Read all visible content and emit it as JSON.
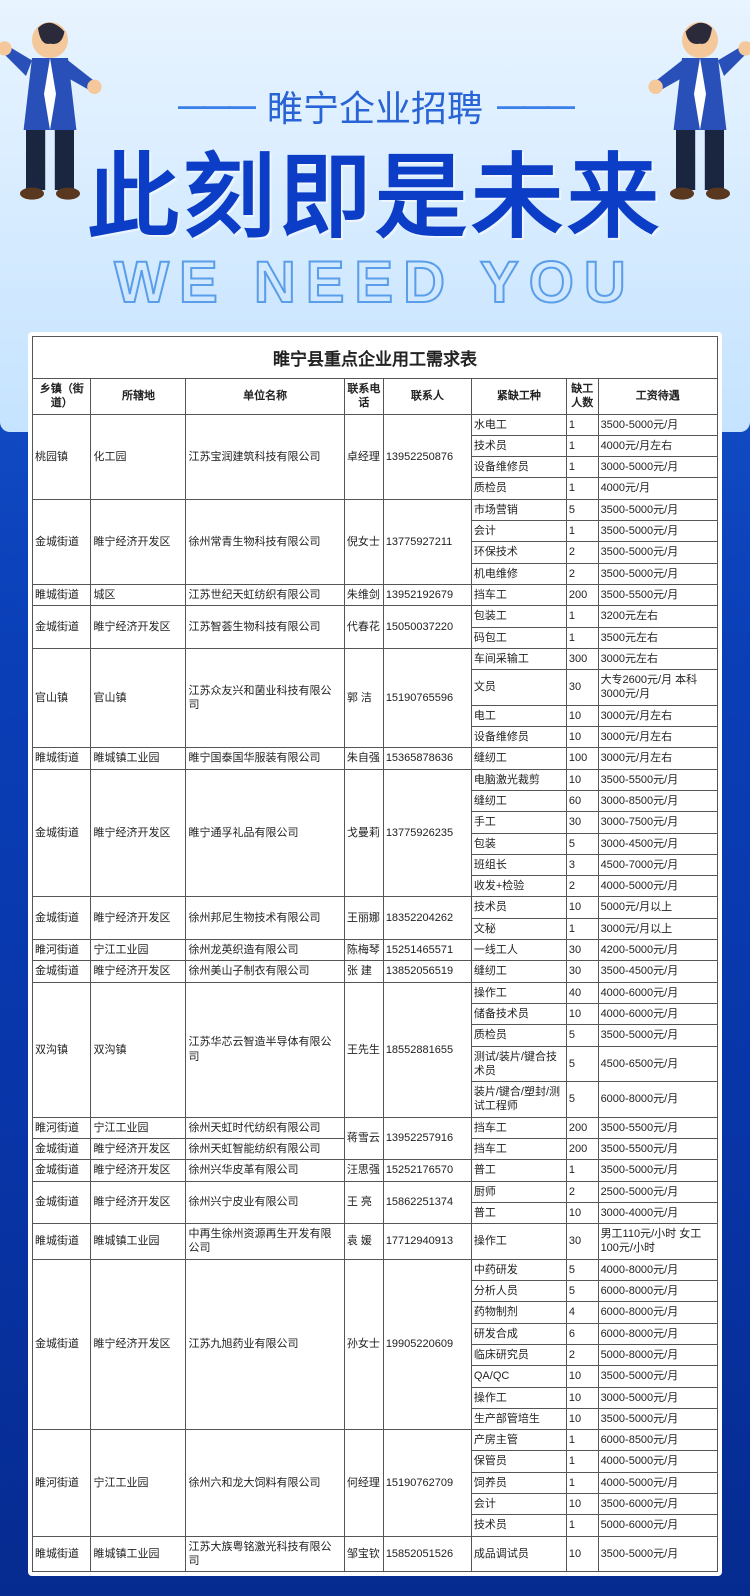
{
  "hero": {
    "subtitle": "睢宁企业招聘",
    "headline": "此刻即是未来",
    "english": "WE NEED YOU"
  },
  "table": {
    "title": "睢宁县重点企业用工需求表",
    "headers": [
      "乡镇（街道）",
      "所辖地",
      "单位名称",
      "联系电话",
      "联系人",
      "紧缺工种",
      "缺工人数",
      "工资待遇"
    ],
    "groups": [
      {
        "town": "桃园镇",
        "loc": "化工园",
        "comp": "江苏宝润建筑科技有限公司",
        "contact": "卓经理",
        "tel": "13952250876",
        "jobs": [
          {
            "name": "水电工",
            "num": "1",
            "sal": "3500-5000元/月"
          },
          {
            "name": "技术员",
            "num": "1",
            "sal": "4000元/月左右"
          },
          {
            "name": "设备维修员",
            "num": "1",
            "sal": "3000-5000元/月"
          },
          {
            "name": "质检员",
            "num": "1",
            "sal": "4000元/月"
          }
        ]
      },
      {
        "town": "金城街道",
        "loc": "睢宁经济开发区",
        "comp": "徐州常青生物科技有限公司",
        "contact": "倪女士",
        "tel": "13775927211",
        "jobs": [
          {
            "name": "市场营销",
            "num": "5",
            "sal": "3500-5000元/月"
          },
          {
            "name": "会计",
            "num": "1",
            "sal": "3500-5000元/月"
          },
          {
            "name": "环保技术",
            "num": "2",
            "sal": "3500-5000元/月"
          },
          {
            "name": "机电维修",
            "num": "2",
            "sal": "3500-5000元/月"
          }
        ]
      },
      {
        "town": "睢城街道",
        "loc": "城区",
        "comp": "江苏世纪天虹纺织有限公司",
        "contact": "朱维剑",
        "tel": "13952192679",
        "jobs": [
          {
            "name": "挡车工",
            "num": "200",
            "sal": "3500-5500元/月"
          }
        ]
      },
      {
        "town": "金城街道",
        "loc": "睢宁经济开发区",
        "comp": "江苏智荟生物科技有限公司",
        "contact": "代春花",
        "tel": "15050037220",
        "jobs": [
          {
            "name": "包装工",
            "num": "1",
            "sal": "3200元左右"
          },
          {
            "name": "码包工",
            "num": "1",
            "sal": "3500元左右"
          }
        ]
      },
      {
        "town": "官山镇",
        "loc": "官山镇",
        "comp": "江苏众友兴和菌业科技有限公司",
        "contact": "郭 洁",
        "tel": "15190765596",
        "jobs": [
          {
            "name": "车间采输工",
            "num": "300",
            "sal": "3000元左右"
          },
          {
            "name": "文员",
            "num": "30",
            "sal": "大专2600元/月 本科3000元/月"
          },
          {
            "name": "电工",
            "num": "10",
            "sal": "3000元/月左右"
          },
          {
            "name": "设备维修员",
            "num": "10",
            "sal": "3000元/月左右"
          }
        ]
      },
      {
        "town": "睢城街道",
        "loc": "睢城镇工业园",
        "comp": "睢宁国泰国华服装有限公司",
        "contact": "朱自强",
        "tel": "15365878636",
        "jobs": [
          {
            "name": "缝纫工",
            "num": "100",
            "sal": "3000元/月左右"
          }
        ]
      },
      {
        "town": "金城街道",
        "loc": "睢宁经济开发区",
        "comp": "睢宁通孚礼品有限公司",
        "contact": "戈曼莉",
        "tel": "13775926235",
        "jobs": [
          {
            "name": "电脑激光裁剪",
            "num": "10",
            "sal": "3500-5500元/月"
          },
          {
            "name": "缝纫工",
            "num": "60",
            "sal": "3000-8500元/月"
          },
          {
            "name": "手工",
            "num": "30",
            "sal": "3000-7500元/月"
          },
          {
            "name": "包装",
            "num": "5",
            "sal": "3000-4500元/月"
          },
          {
            "name": "班组长",
            "num": "3",
            "sal": "4500-7000元/月"
          },
          {
            "name": "收发+检验",
            "num": "2",
            "sal": "4000-5000元/月"
          }
        ]
      },
      {
        "town": "金城街道",
        "loc": "睢宁经济开发区",
        "comp": "徐州邦尼生物技术有限公司",
        "contact": "王丽娜",
        "tel": "18352204262",
        "jobs": [
          {
            "name": "技术员",
            "num": "10",
            "sal": "5000元/月以上"
          },
          {
            "name": "文秘",
            "num": "1",
            "sal": "3000元/月以上"
          }
        ]
      },
      {
        "town": "睢河街道",
        "loc": "宁江工业园",
        "comp": "徐州龙英织造有限公司",
        "contact": "陈梅琴",
        "tel": "15251465571",
        "jobs": [
          {
            "name": "一线工人",
            "num": "30",
            "sal": "4200-5000元/月"
          }
        ]
      },
      {
        "town": "金城街道",
        "loc": "睢宁经济开发区",
        "comp": "徐州美山子制衣有限公司",
        "contact": "张 建",
        "tel": "13852056519",
        "jobs": [
          {
            "name": "缝纫工",
            "num": "30",
            "sal": "3500-4500元/月"
          }
        ]
      },
      {
        "town": "双沟镇",
        "loc": "双沟镇",
        "comp": "江苏华芯云智造半导体有限公司",
        "contact": "王先生",
        "tel": "18552881655",
        "jobs": [
          {
            "name": "操作工",
            "num": "40",
            "sal": "4000-6000元/月"
          },
          {
            "name": "储备技术员",
            "num": "10",
            "sal": "4000-6000元/月"
          },
          {
            "name": "质检员",
            "num": "5",
            "sal": "3500-5000元/月"
          },
          {
            "name": "测试/装片/键合技术员",
            "num": "5",
            "sal": "4500-6500元/月"
          },
          {
            "name": "装片/键合/塑封/测试工程师",
            "num": "5",
            "sal": "6000-8000元/月"
          }
        ]
      },
      {
        "town": "睢河街道",
        "loc": "宁江工业园",
        "comp": "徐州天虹时代纺织有限公司",
        "contact": "蒋雪云",
        "tel": "13952257916",
        "jobs": [
          {
            "name": "挡车工",
            "num": "200",
            "sal": "3500-5500元/月"
          }
        ]
      },
      {
        "town": "金城街道",
        "loc": "睢宁经济开发区",
        "comp": "徐州天虹智能纺织有限公司",
        "contact": "",
        "tel": "",
        "jobs": [
          {
            "name": "挡车工",
            "num": "200",
            "sal": "3500-5500元/月"
          }
        ],
        "merge_prev_contact": true
      },
      {
        "town": "金城街道",
        "loc": "睢宁经济开发区",
        "comp": "徐州兴华皮革有限公司",
        "contact": "汪思强",
        "tel": "15252176570",
        "jobs": [
          {
            "name": "普工",
            "num": "1",
            "sal": "3500-5000元/月"
          }
        ]
      },
      {
        "town": "金城街道",
        "loc": "睢宁经济开发区",
        "comp": "徐州兴宁皮业有限公司",
        "contact": "王 亮",
        "tel": "15862251374",
        "jobs": [
          {
            "name": "厨师",
            "num": "2",
            "sal": "2500-5000元/月"
          },
          {
            "name": "普工",
            "num": "10",
            "sal": "3000-4000元/月"
          }
        ]
      },
      {
        "town": "睢城街道",
        "loc": "睢城镇工业园",
        "comp": "中再生徐州资源再生开发有限公司",
        "contact": "袁 媛",
        "tel": "17712940913",
        "jobs": [
          {
            "name": "操作工",
            "num": "30",
            "sal": "男工110元/小时 女工100元/小时"
          }
        ]
      },
      {
        "town": "金城街道",
        "loc": "睢宁经济开发区",
        "comp": "江苏九旭药业有限公司",
        "contact": "孙女士",
        "tel": "19905220609",
        "jobs": [
          {
            "name": "中药研发",
            "num": "5",
            "sal": "4000-8000元/月"
          },
          {
            "name": "分析人员",
            "num": "5",
            "sal": "6000-8000元/月"
          },
          {
            "name": "药物制剂",
            "num": "4",
            "sal": "6000-8000元/月"
          },
          {
            "name": "研发合成",
            "num": "6",
            "sal": "6000-8000元/月"
          },
          {
            "name": "临床研究员",
            "num": "2",
            "sal": "5000-8000元/月"
          },
          {
            "name": "QA/QC",
            "num": "10",
            "sal": "3500-5000元/月"
          },
          {
            "name": "操作工",
            "num": "10",
            "sal": "3000-5000元/月"
          },
          {
            "name": "生产部管培生",
            "num": "10",
            "sal": "3500-5000元/月"
          }
        ]
      },
      {
        "town": "睢河街道",
        "loc": "宁江工业园",
        "comp": "徐州六和龙大饲料有限公司",
        "contact": "何经理",
        "tel": "15190762709",
        "jobs": [
          {
            "name": "产房主管",
            "num": "1",
            "sal": "6000-8500元/月"
          },
          {
            "name": "保管员",
            "num": "1",
            "sal": "4000-5000元/月"
          },
          {
            "name": "饲养员",
            "num": "1",
            "sal": "4000-5000元/月"
          },
          {
            "name": "会计",
            "num": "10",
            "sal": "3500-6000元/月"
          },
          {
            "name": "技术员",
            "num": "1",
            "sal": "5000-6000元/月"
          }
        ]
      },
      {
        "town": "睢城街道",
        "loc": "睢城镇工业园",
        "comp": "江苏大族粤铭激光科技有限公司",
        "contact": "邹宝钦",
        "tel": "15852051526",
        "jobs": [
          {
            "name": "成品调试员",
            "num": "10",
            "sal": "3500-5000元/月"
          }
        ]
      }
    ]
  }
}
